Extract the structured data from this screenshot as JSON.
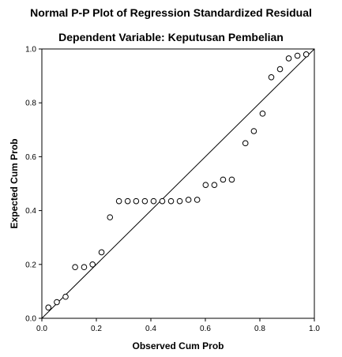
{
  "chart_data": {
    "type": "scatter",
    "title": "Normal P-P Plot of Regression Standardized Residual",
    "subtitle": "Dependent Variable: Keputusan Pembelian",
    "xlabel": "Observed Cum Prob",
    "ylabel": "Expected Cum Prob",
    "xlim": [
      0,
      1
    ],
    "ylim": [
      0,
      1
    ],
    "x_ticks": [
      "0.0",
      "0.2",
      "0.4",
      "0.6",
      "0.8",
      "1.0"
    ],
    "y_ticks": [
      "0.0",
      "0.2",
      "0.4",
      "0.6",
      "0.8",
      "1.0"
    ],
    "grid": false,
    "reference_line": [
      [
        0,
        0
      ],
      [
        1,
        1
      ]
    ],
    "points": [
      [
        0.024,
        0.04
      ],
      [
        0.055,
        0.06
      ],
      [
        0.087,
        0.08
      ],
      [
        0.122,
        0.19
      ],
      [
        0.155,
        0.19
      ],
      [
        0.186,
        0.2
      ],
      [
        0.219,
        0.245
      ],
      [
        0.25,
        0.375
      ],
      [
        0.283,
        0.435
      ],
      [
        0.315,
        0.435
      ],
      [
        0.346,
        0.435
      ],
      [
        0.378,
        0.435
      ],
      [
        0.41,
        0.435
      ],
      [
        0.442,
        0.435
      ],
      [
        0.474,
        0.435
      ],
      [
        0.506,
        0.435
      ],
      [
        0.538,
        0.44
      ],
      [
        0.57,
        0.44
      ],
      [
        0.601,
        0.495
      ],
      [
        0.633,
        0.495
      ],
      [
        0.665,
        0.515
      ],
      [
        0.697,
        0.515
      ],
      [
        0.747,
        0.65
      ],
      [
        0.778,
        0.695
      ],
      [
        0.81,
        0.76
      ],
      [
        0.842,
        0.895
      ],
      [
        0.874,
        0.925
      ],
      [
        0.906,
        0.965
      ],
      [
        0.938,
        0.975
      ],
      [
        0.97,
        0.98
      ]
    ]
  }
}
